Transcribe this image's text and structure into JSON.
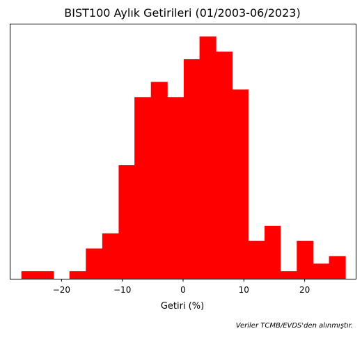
{
  "chart_data": {
    "type": "bar",
    "title": "BIST100 Aylık Getirileri (01/2003-06/2023)",
    "xlabel": "Getiri (%)",
    "ylabel": "",
    "bin_edges": [
      -26.6,
      -24.0,
      -21.3,
      -18.7,
      -16.0,
      -13.3,
      -10.6,
      -8.0,
      -5.3,
      -2.6,
      0.1,
      2.7,
      5.4,
      8.1,
      10.7,
      13.4,
      16.0,
      18.7,
      21.4,
      24.0,
      26.7
    ],
    "counts": [
      1,
      1,
      0,
      1,
      4,
      6,
      15,
      24,
      26,
      24,
      29,
      32,
      30,
      25,
      5,
      7,
      1,
      5,
      2,
      3
    ],
    "xlim": [
      -28.4,
      28.4
    ],
    "ylim": [
      0,
      33.6
    ],
    "xticks": [
      -20,
      -10,
      0,
      10,
      20
    ],
    "xtick_labels": [
      "−20",
      "−10",
      "0",
      "10",
      "20"
    ],
    "yticks_shown": false,
    "grid": false,
    "bar_color": "#ff0000"
  },
  "source_note": "Veriler TCMB/EVDS'den alınmıştır."
}
